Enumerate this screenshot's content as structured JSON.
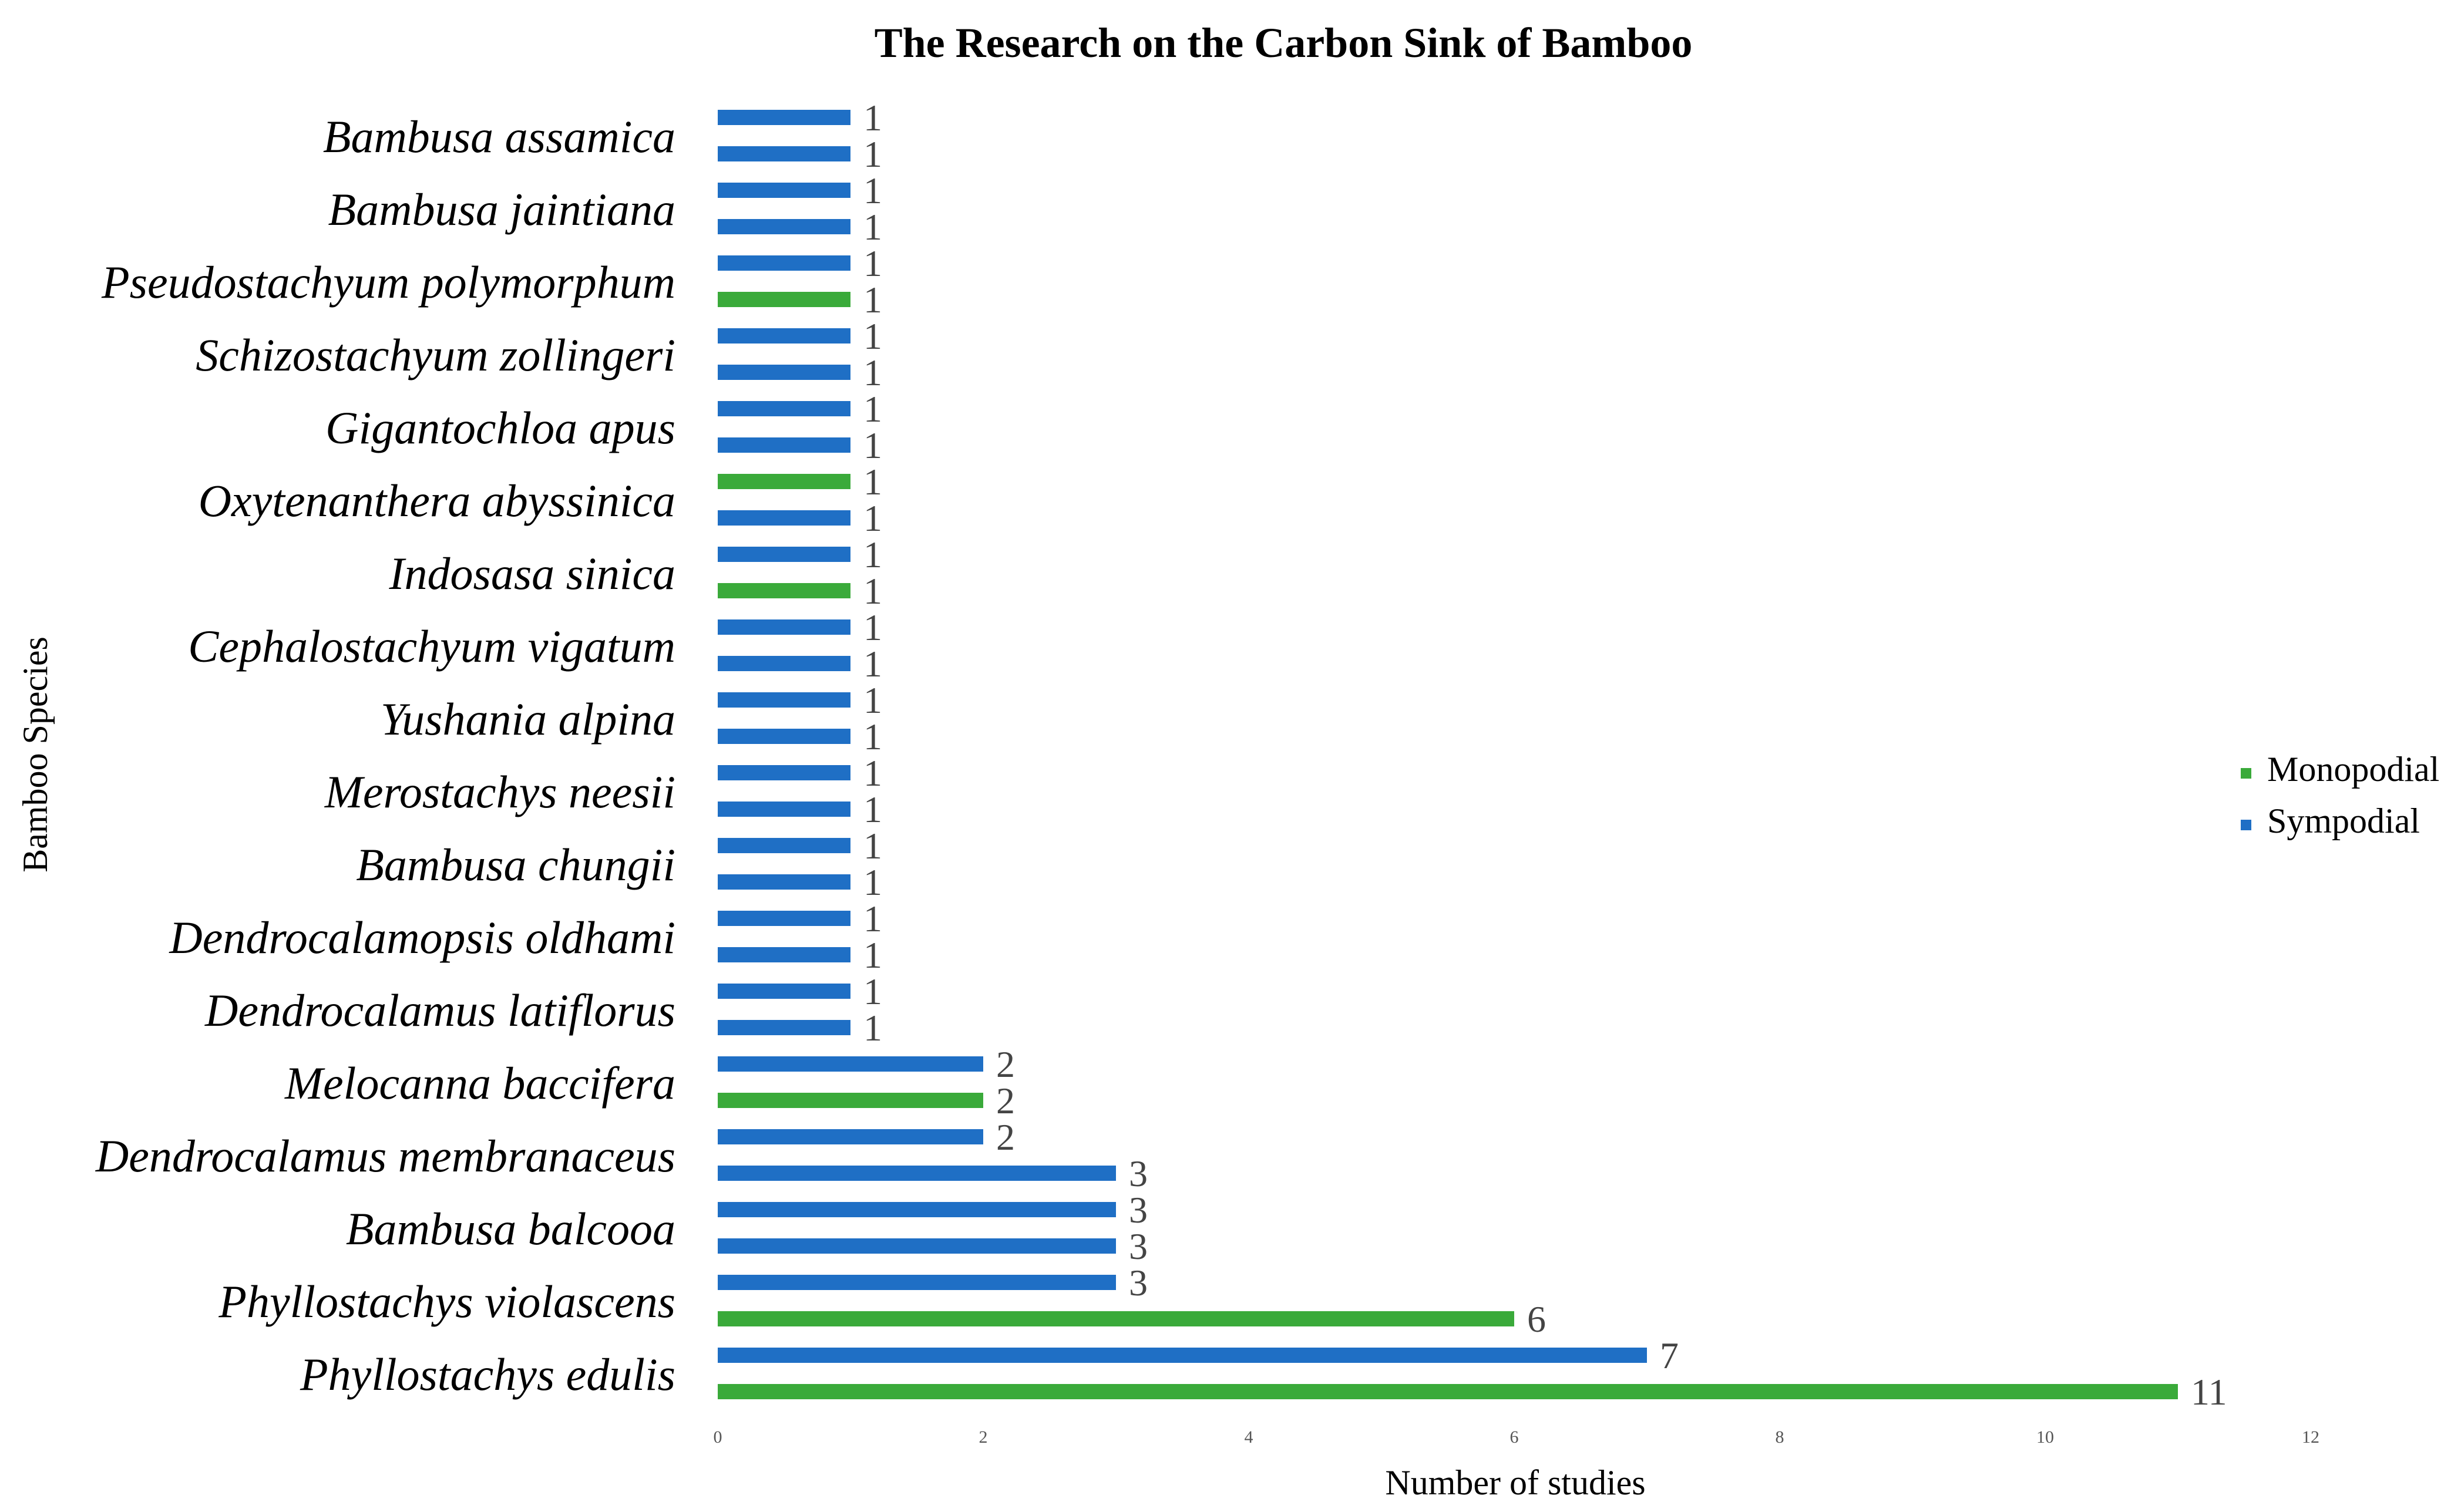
{
  "chart_data": {
    "type": "bar",
    "orientation": "horizontal",
    "title": "The Research on the Carbon Sink of Bamboo",
    "xlabel": "Number of studies",
    "ylabel": "Bamboo Species",
    "xlim": [
      0,
      12
    ],
    "xticks": [
      0,
      2,
      4,
      6,
      8,
      10,
      12
    ],
    "grid": false,
    "legend_position": "right",
    "series": [
      {
        "name": "Monopodial",
        "color": "#3aaa3a"
      },
      {
        "name": "Sympodial",
        "color": "#1f6fc5"
      }
    ],
    "labeled_categories": [
      "Phyllostachys edulis",
      "Phyllostachys violascens",
      "Bambusa balcooa",
      "Dendrocalamus membranaceus",
      "Melocanna baccifera",
      "Dendrocalamus latiflorus",
      "Dendrocalamopsis oldhami",
      "Bambusa chungii",
      "Merostachys neesii",
      "Yushania alpina",
      "Cephalostachyum vigatum",
      "Indosasa sinica",
      "Oxytenanthera abyssinica",
      "Gigantochloa apus",
      "Schizostachyum zollingeri",
      "Pseudostachyum polymorphum",
      "Bambusa jaintiana",
      "Bambusa assamica"
    ],
    "bars_bottom_to_top": [
      {
        "value": 11,
        "series": "Monopodial"
      },
      {
        "value": 7,
        "series": "Sympodial"
      },
      {
        "value": 6,
        "series": "Monopodial"
      },
      {
        "value": 3,
        "series": "Sympodial"
      },
      {
        "value": 3,
        "series": "Sympodial"
      },
      {
        "value": 3,
        "series": "Sympodial"
      },
      {
        "value": 3,
        "series": "Sympodial"
      },
      {
        "value": 2,
        "series": "Sympodial"
      },
      {
        "value": 2,
        "series": "Monopodial"
      },
      {
        "value": 2,
        "series": "Sympodial"
      },
      {
        "value": 1,
        "series": "Sympodial"
      },
      {
        "value": 1,
        "series": "Sympodial"
      },
      {
        "value": 1,
        "series": "Sympodial"
      },
      {
        "value": 1,
        "series": "Sympodial"
      },
      {
        "value": 1,
        "series": "Sympodial"
      },
      {
        "value": 1,
        "series": "Sympodial"
      },
      {
        "value": 1,
        "series": "Sympodial"
      },
      {
        "value": 1,
        "series": "Sympodial"
      },
      {
        "value": 1,
        "series": "Sympodial"
      },
      {
        "value": 1,
        "series": "Sympodial"
      },
      {
        "value": 1,
        "series": "Sympodial"
      },
      {
        "value": 1,
        "series": "Sympodial"
      },
      {
        "value": 1,
        "series": "Monopodial"
      },
      {
        "value": 1,
        "series": "Sympodial"
      },
      {
        "value": 1,
        "series": "Sympodial"
      },
      {
        "value": 1,
        "series": "Monopodial"
      },
      {
        "value": 1,
        "series": "Sympodial"
      },
      {
        "value": 1,
        "series": "Sympodial"
      },
      {
        "value": 1,
        "series": "Sympodial"
      },
      {
        "value": 1,
        "series": "Sympodial"
      },
      {
        "value": 1,
        "series": "Monopodial"
      },
      {
        "value": 1,
        "series": "Sympodial"
      },
      {
        "value": 1,
        "series": "Sympodial"
      },
      {
        "value": 1,
        "series": "Sympodial"
      },
      {
        "value": 1,
        "series": "Sympodial"
      },
      {
        "value": 1,
        "series": "Sympodial"
      }
    ]
  }
}
